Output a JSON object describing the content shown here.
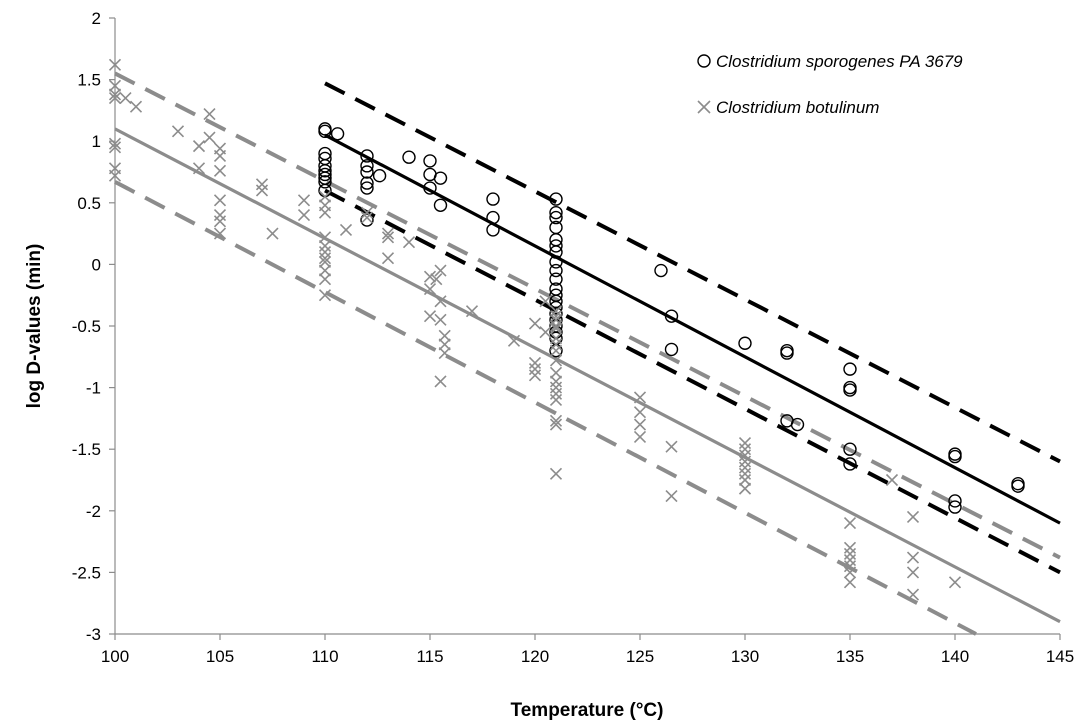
{
  "chart_data": {
    "type": "scatter",
    "title": "",
    "xlabel": "Temperature (°C)",
    "ylabel": "log D-values (min)",
    "xlim": [
      100,
      145
    ],
    "ylim": [
      -3,
      2
    ],
    "xticks": [
      100,
      105,
      110,
      115,
      120,
      125,
      130,
      135,
      140,
      145
    ],
    "yticks": [
      -3,
      -2.5,
      -2,
      -1.5,
      -1,
      -0.5,
      0,
      0.5,
      1,
      1.5,
      2
    ],
    "grid": false,
    "legend_position": "top-right",
    "series": [
      {
        "name": "Clostridium sporogenes PA 3679",
        "marker": "circle",
        "color": "#000000",
        "points": [
          [
            110,
            1.1
          ],
          [
            110,
            1.08
          ],
          [
            110,
            0.9
          ],
          [
            110,
            0.86
          ],
          [
            110,
            0.8
          ],
          [
            110,
            0.76
          ],
          [
            110,
            0.73
          ],
          [
            110,
            0.7
          ],
          [
            110,
            0.67
          ],
          [
            110,
            0.6
          ],
          [
            110.6,
            1.06
          ],
          [
            112,
            0.88
          ],
          [
            112,
            0.8
          ],
          [
            112,
            0.75
          ],
          [
            112,
            0.66
          ],
          [
            112,
            0.62
          ],
          [
            112,
            0.36
          ],
          [
            112.6,
            0.72
          ],
          [
            114,
            0.87
          ],
          [
            115,
            0.84
          ],
          [
            115,
            0.73
          ],
          [
            115,
            0.62
          ],
          [
            115.5,
            0.7
          ],
          [
            115.5,
            0.48
          ],
          [
            118,
            0.53
          ],
          [
            118,
            0.38
          ],
          [
            118,
            0.28
          ],
          [
            121,
            0.53
          ],
          [
            121,
            0.42
          ],
          [
            121,
            0.38
          ],
          [
            121,
            0.3
          ],
          [
            121,
            0.2
          ],
          [
            121,
            0.15
          ],
          [
            121,
            0.1
          ],
          [
            121,
            0.02
          ],
          [
            121,
            -0.05
          ],
          [
            121,
            -0.12
          ],
          [
            121,
            -0.2
          ],
          [
            121,
            -0.25
          ],
          [
            121,
            -0.3
          ],
          [
            121,
            -0.35
          ],
          [
            121,
            -0.4
          ],
          [
            121,
            -0.45
          ],
          [
            121,
            -0.5
          ],
          [
            121,
            -0.55
          ],
          [
            121,
            -0.6
          ],
          [
            121,
            -0.7
          ],
          [
            126,
            -0.05
          ],
          [
            126.5,
            -0.42
          ],
          [
            126.5,
            -0.69
          ],
          [
            130,
            -0.64
          ],
          [
            132,
            -0.7
          ],
          [
            132,
            -0.72
          ],
          [
            132,
            -1.27
          ],
          [
            132.5,
            -1.3
          ],
          [
            135,
            -0.85
          ],
          [
            135,
            -1.0
          ],
          [
            135,
            -1.02
          ],
          [
            135,
            -1.5
          ],
          [
            135,
            -1.62
          ],
          [
            140,
            -1.54
          ],
          [
            140,
            -1.56
          ],
          [
            140,
            -1.92
          ],
          [
            140,
            -1.97
          ],
          [
            143,
            -1.78
          ],
          [
            143,
            -1.8
          ]
        ]
      },
      {
        "name": "Clostridium botulinum",
        "marker": "x",
        "color": "#8c8c8c",
        "points": [
          [
            100,
            1.62
          ],
          [
            100,
            1.45
          ],
          [
            100,
            1.38
          ],
          [
            100,
            1.35
          ],
          [
            100,
            0.98
          ],
          [
            100,
            0.95
          ],
          [
            100,
            0.78
          ],
          [
            100,
            0.72
          ],
          [
            100.5,
            1.35
          ],
          [
            101,
            1.28
          ],
          [
            103,
            1.08
          ],
          [
            104,
            0.96
          ],
          [
            104,
            0.78
          ],
          [
            104.5,
            1.22
          ],
          [
            104.5,
            1.03
          ],
          [
            105,
            0.94
          ],
          [
            105,
            0.88
          ],
          [
            105,
            0.76
          ],
          [
            105,
            0.52
          ],
          [
            105,
            0.4
          ],
          [
            105,
            0.35
          ],
          [
            105,
            0.25
          ],
          [
            107,
            0.65
          ],
          [
            107,
            0.6
          ],
          [
            107.5,
            0.25
          ],
          [
            109,
            0.52
          ],
          [
            109,
            0.4
          ],
          [
            110,
            0.55
          ],
          [
            110,
            0.48
          ],
          [
            110,
            0.42
          ],
          [
            110,
            0.22
          ],
          [
            110,
            0.15
          ],
          [
            110,
            0.1
          ],
          [
            110,
            0.05
          ],
          [
            110,
            0.02
          ],
          [
            110,
            -0.05
          ],
          [
            110,
            -0.12
          ],
          [
            110,
            -0.25
          ],
          [
            111,
            0.28
          ],
          [
            112,
            0.42
          ],
          [
            112,
            0.38
          ],
          [
            113,
            0.25
          ],
          [
            113,
            0.22
          ],
          [
            113,
            0.05
          ],
          [
            114,
            0.18
          ],
          [
            115,
            -0.1
          ],
          [
            115,
            -0.2
          ],
          [
            115,
            -0.42
          ],
          [
            115.3,
            -0.12
          ],
          [
            115.5,
            -0.05
          ],
          [
            115.5,
            -0.3
          ],
          [
            115.5,
            -0.45
          ],
          [
            115.7,
            -0.58
          ],
          [
            115.7,
            -0.65
          ],
          [
            115.7,
            -0.72
          ],
          [
            115.5,
            -0.95
          ],
          [
            117,
            -0.38
          ],
          [
            119,
            -0.62
          ],
          [
            120,
            -0.48
          ],
          [
            120,
            -0.8
          ],
          [
            120,
            -0.85
          ],
          [
            120,
            -0.9
          ],
          [
            120.5,
            -0.3
          ],
          [
            120.5,
            -0.55
          ],
          [
            121,
            -0.38
          ],
          [
            121,
            -0.42
          ],
          [
            121,
            -0.45
          ],
          [
            121,
            -0.5
          ],
          [
            121,
            -0.52
          ],
          [
            121,
            -0.6
          ],
          [
            121,
            -0.65
          ],
          [
            121,
            -0.7
          ],
          [
            121,
            -0.78
          ],
          [
            121,
            -0.88
          ],
          [
            121,
            -0.95
          ],
          [
            121,
            -1.0
          ],
          [
            121,
            -1.05
          ],
          [
            121,
            -1.1
          ],
          [
            121,
            -1.27
          ],
          [
            121,
            -1.3
          ],
          [
            121,
            -1.7
          ],
          [
            125,
            -1.08
          ],
          [
            125,
            -1.2
          ],
          [
            125,
            -1.3
          ],
          [
            125,
            -1.4
          ],
          [
            126.5,
            -1.48
          ],
          [
            126.5,
            -1.88
          ],
          [
            130,
            -1.45
          ],
          [
            130,
            -1.5
          ],
          [
            130,
            -1.55
          ],
          [
            130,
            -1.6
          ],
          [
            130,
            -1.65
          ],
          [
            130,
            -1.7
          ],
          [
            130,
            -1.75
          ],
          [
            130,
            -1.82
          ],
          [
            135,
            -2.1
          ],
          [
            135,
            -2.3
          ],
          [
            135,
            -2.35
          ],
          [
            135,
            -2.4
          ],
          [
            135,
            -2.45
          ],
          [
            135,
            -2.5
          ],
          [
            135,
            -2.58
          ],
          [
            137,
            -1.75
          ],
          [
            138,
            -2.05
          ],
          [
            138,
            -2.38
          ],
          [
            138,
            -2.5
          ],
          [
            138,
            -2.68
          ],
          [
            140,
            -2.58
          ]
        ]
      }
    ],
    "lines": [
      {
        "series": "Clostridium sporogenes PA 3679",
        "style": "solid",
        "color": "#000000",
        "from": [
          110,
          1.05
        ],
        "to": [
          145,
          -2.1
        ]
      },
      {
        "series": "Clostridium sporogenes PA 3679",
        "style": "dashed",
        "color": "#000000",
        "from": [
          110,
          1.47
        ],
        "to": [
          145,
          -1.6
        ]
      },
      {
        "series": "Clostridium sporogenes PA 3679",
        "style": "dashed",
        "color": "#000000",
        "from": [
          110,
          0.6
        ],
        "to": [
          145,
          -2.5
        ]
      },
      {
        "series": "Clostridium botulinum",
        "style": "solid",
        "color": "#8c8c8c",
        "from": [
          100,
          1.1
        ],
        "to": [
          145,
          -2.9
        ]
      },
      {
        "series": "Clostridium botulinum",
        "style": "dashed",
        "color": "#8c8c8c",
        "from": [
          100,
          1.55
        ],
        "to": [
          145,
          -2.38
        ]
      },
      {
        "series": "Clostridium botulinum",
        "style": "dashed",
        "color": "#8c8c8c",
        "from": [
          100,
          0.67
        ],
        "to": [
          141,
          -3.0
        ]
      }
    ]
  }
}
